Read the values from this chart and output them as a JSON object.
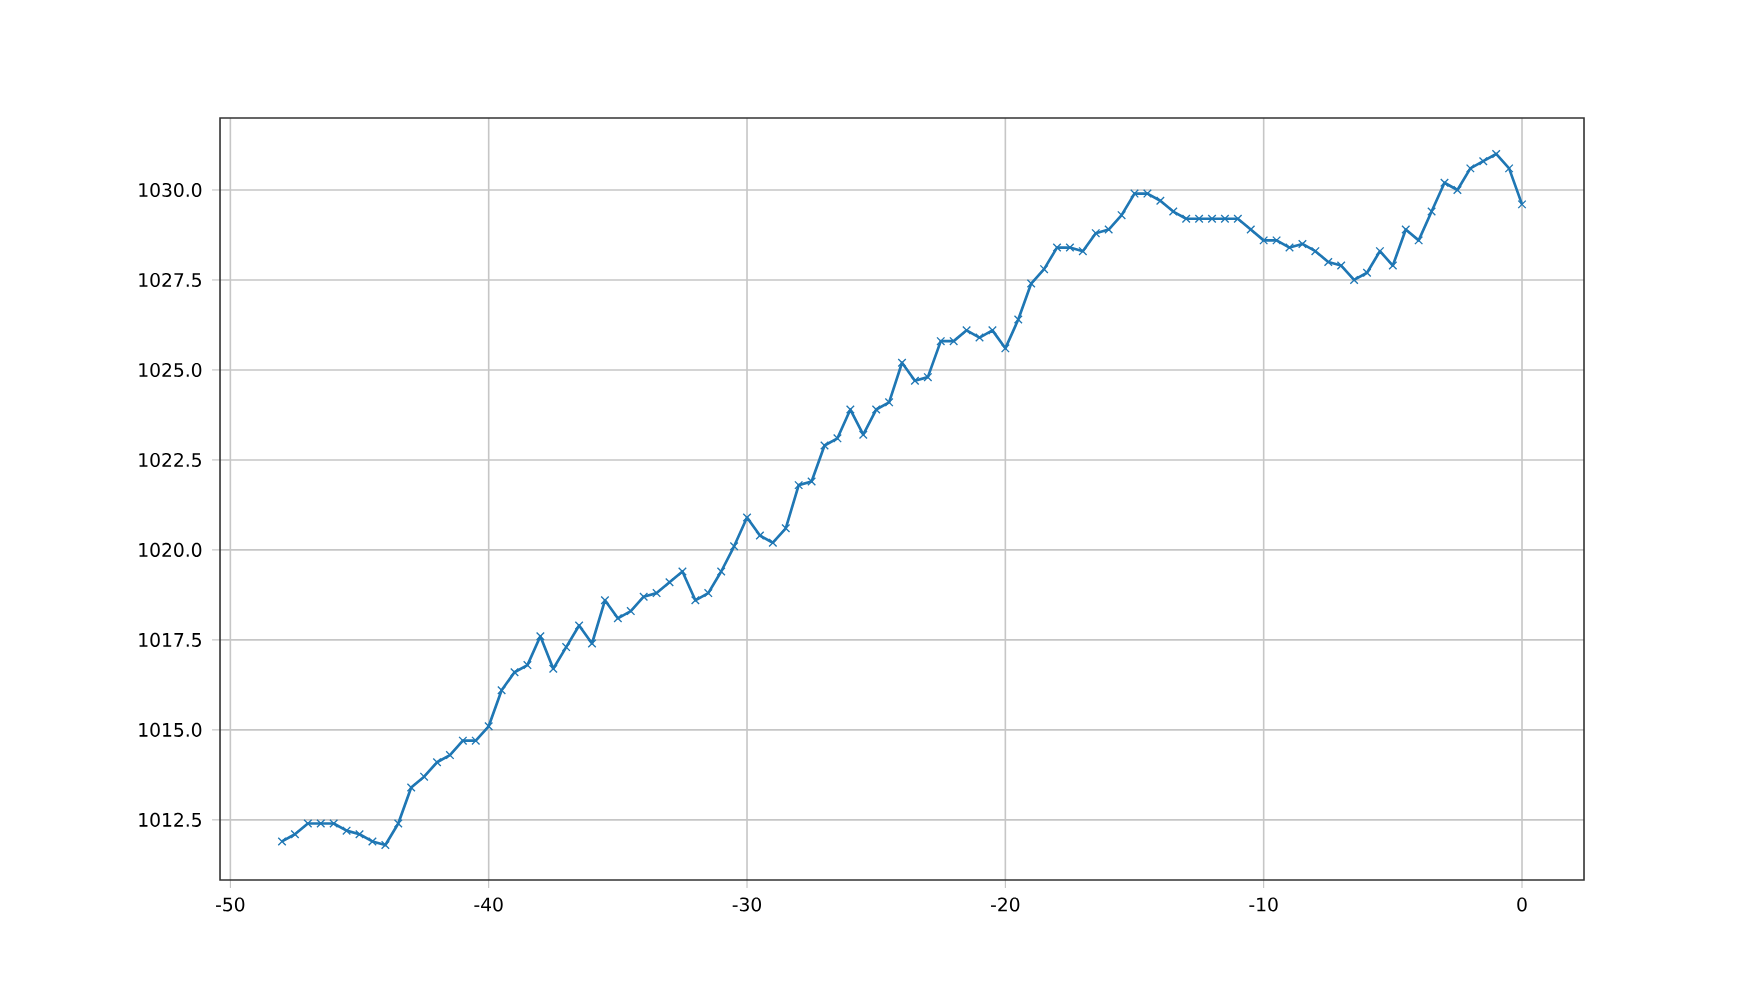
{
  "chart_data": {
    "type": "line",
    "marker": "cross",
    "grid": true,
    "xlim": [
      -50.4,
      2.4
    ],
    "ylim": [
      1010.83,
      1032.0
    ],
    "xticks": [
      -50,
      -40,
      -30,
      -20,
      -10,
      0
    ],
    "yticks": [
      1012.5,
      {
        "value": 1015,
        "label": "1015.0"
      },
      1017.5,
      {
        "value": 1020,
        "label": "1020.0"
      },
      1022.5,
      {
        "value": 1025,
        "label": "1025.0"
      },
      1027.5,
      {
        "value": 1030,
        "label": "1030.0"
      }
    ],
    "x": [
      -48,
      -47.5,
      -47,
      -46.5,
      -46,
      -45.5,
      -45,
      -44.5,
      -44,
      -43.5,
      -43,
      -42.5,
      -42,
      -41.5,
      -41,
      -40.5,
      -40,
      -39.5,
      -39,
      -38.5,
      -38,
      -37.5,
      -37,
      -36.5,
      -36,
      -35.5,
      -35,
      -34.5,
      -34,
      -33.5,
      -33,
      -32.5,
      -32,
      -31.5,
      -31,
      -30.5,
      -30,
      -29.5,
      -29,
      -28.5,
      -28,
      -27.5,
      -27,
      -26.5,
      -26,
      -25.5,
      -25,
      -24.5,
      -24,
      -23.5,
      -23,
      -22.5,
      -22,
      -21.5,
      -21,
      -20.5,
      -20,
      -19.5,
      -19,
      -18.5,
      -18,
      -17.5,
      -17,
      -16.5,
      -16,
      -15.5,
      -15,
      -14.5,
      -14,
      -13.5,
      -13,
      -12.5,
      -12,
      -11.5,
      -11,
      -10.5,
      -10,
      -9.5,
      -9,
      -8.5,
      -8,
      -7.5,
      -7,
      -6.5,
      -6,
      -5.5,
      -5,
      -4.5,
      -4,
      -3.5,
      -3,
      -2.5,
      -2,
      -1.5,
      -1,
      -0.5,
      0
    ],
    "series": [
      {
        "color": "#1f77b4",
        "values": [
          1011.9,
          1012.1,
          1012.4,
          1012.4,
          1012.4,
          1012.2,
          1012.1,
          1011.9,
          1011.8,
          1012.4,
          1013.4,
          1013.7,
          1014.1,
          1014.3,
          1014.7,
          1014.7,
          1015.1,
          1016.1,
          1016.6,
          1016.8,
          1017.6,
          1016.7,
          1017.3,
          1017.9,
          1017.4,
          1018.6,
          1018.1,
          1018.3,
          1018.7,
          1018.8,
          1019.1,
          1019.4,
          1018.6,
          1018.8,
          1019.4,
          1020.1,
          1020.9,
          1020.4,
          1020.2,
          1020.6,
          1021.8,
          1021.9,
          1022.9,
          1023.1,
          1023.9,
          1023.2,
          1023.9,
          1024.1,
          1025.2,
          1024.7,
          1024.8,
          1025.8,
          1025.8,
          1026.1,
          1025.9,
          1026.1,
          1025.6,
          1026.4,
          1027.4,
          1027.8,
          1028.4,
          1028.4,
          1028.3,
          1028.8,
          1028.9,
          1029.3,
          1029.9,
          1029.9,
          1029.7,
          1029.4,
          1029.2,
          1029.2,
          1029.2,
          1029.2,
          1029.2,
          1028.9,
          1028.6,
          1028.6,
          1028.4,
          1028.5,
          1028.3,
          1028.0,
          1027.9,
          1027.5,
          1027.7,
          1028.3,
          1027.9,
          1028.9,
          1028.6,
          1029.4,
          1030.2,
          1030.0,
          1030.6,
          1030.8,
          1031.0,
          1030.6,
          1029.6
        ]
      }
    ]
  }
}
